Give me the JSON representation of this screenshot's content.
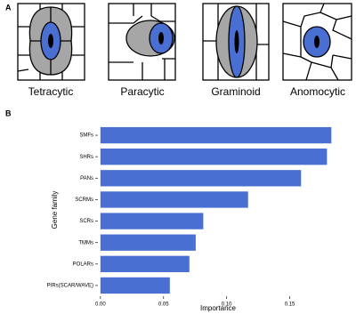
{
  "panel_a": {
    "label": "A",
    "cell_types": [
      "Tetracytic",
      "Paracytic",
      "Graminoid",
      "Anomocytic"
    ]
  },
  "chart_data": {
    "type": "barh",
    "panel_label": "B",
    "x_label": "Importance",
    "y_label": "Gene family",
    "categories": [
      "SMFs",
      "SHRs",
      "PANs",
      "SCRMs",
      "SCRs",
      "TMMs",
      "POLARs",
      "PIRs(SCAR/WAVE)"
    ],
    "values": [
      0.183,
      0.1795,
      0.159,
      0.117,
      0.0815,
      0.0755,
      0.0705,
      0.055
    ],
    "color": "#4a6fd3",
    "xlim": [
      -0.002,
      0.187
    ],
    "xticks": [
      {
        "value": 0,
        "label": "0.00"
      },
      0.05,
      {
        "value": 0.1,
        "label": "0.10"
      },
      0.15
    ]
  }
}
